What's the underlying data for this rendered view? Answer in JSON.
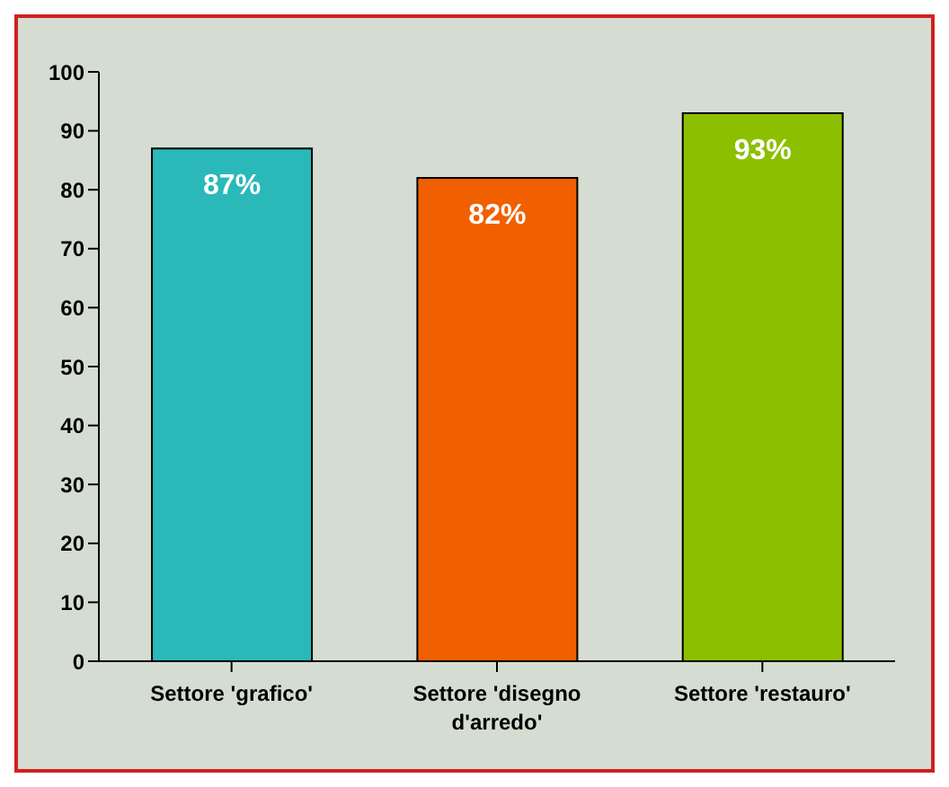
{
  "chart_data": {
    "type": "bar",
    "categories": [
      "Settore 'grafico'",
      "Settore 'disegno d'arredo'",
      "Settore 'restauro'"
    ],
    "values": [
      87,
      82,
      93
    ],
    "colors": [
      "#2ab8b8",
      "#f06000",
      "#8cbf00"
    ],
    "value_labels": [
      "87%",
      "82%",
      "93%"
    ],
    "ylim": [
      0,
      100
    ],
    "yticks": [
      0,
      10,
      20,
      30,
      40,
      50,
      60,
      70,
      80,
      90,
      100
    ],
    "grid": false
  }
}
